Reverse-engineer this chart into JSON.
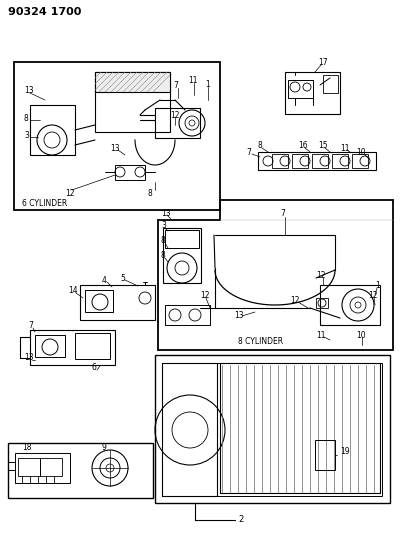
{
  "title": "90324 1700",
  "bg_color": "#ffffff",
  "fig_width": 4.02,
  "fig_height": 5.33,
  "dpi": 100,
  "gray": "#555555",
  "darkgray": "#333333",
  "light": "#aaaaaa"
}
